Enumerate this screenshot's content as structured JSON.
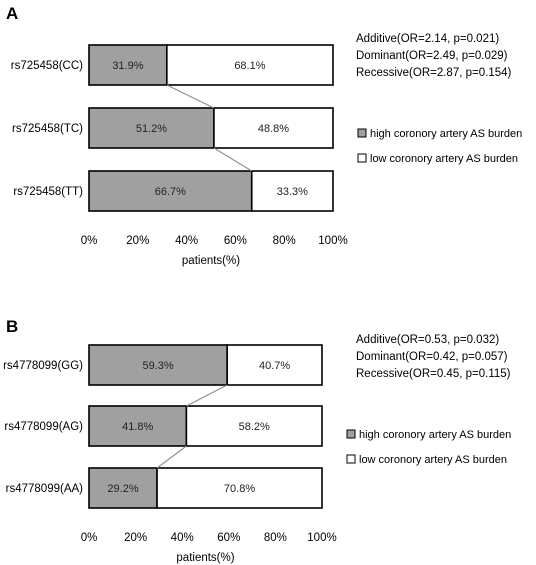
{
  "chart_data": [
    {
      "type": "bar",
      "orientation": "horizontal",
      "stacked": true,
      "panel": "A",
      "categories": [
        "rs725458(CC)",
        "rs725458(TC)",
        "rs725458(TT)"
      ],
      "series": [
        {
          "name": "high coronory artery AS burden",
          "color": "#a0a0a0",
          "values": [
            31.9,
            51.2,
            66.7
          ],
          "labels": [
            "31.9%",
            "51.2%",
            "66.7%"
          ]
        },
        {
          "name": "low coronory artery AS burden",
          "color": "#ffffff",
          "values": [
            68.1,
            48.8,
            33.3
          ],
          "labels": [
            "68.1%",
            "48.8%",
            "33.3%"
          ]
        }
      ],
      "xlabel": "patients(%)",
      "xlim": [
        0,
        100
      ],
      "xticks": [
        "0%",
        "20%",
        "40%",
        "60%",
        "80%",
        "100%"
      ],
      "annotations": [
        "Additive(OR=2.14, p=0.021)",
        "Dominant(OR=2.49, p=0.029)",
        "Recessive(OR=2.87, p=0.154)"
      ],
      "legend_position": "right"
    },
    {
      "type": "bar",
      "orientation": "horizontal",
      "stacked": true,
      "panel": "B",
      "categories": [
        "rs4778099(GG)",
        "rs4778099(AG)",
        "rs4778099(AA)"
      ],
      "series": [
        {
          "name": "high coronory artery AS burden",
          "color": "#a0a0a0",
          "values": [
            59.3,
            41.8,
            29.2
          ],
          "labels": [
            "59.3%",
            "41.8%",
            "29.2%"
          ]
        },
        {
          "name": "low coronory artery AS burden",
          "color": "#ffffff",
          "values": [
            40.7,
            58.2,
            70.8
          ],
          "labels": [
            "40.7%",
            "58.2%",
            "70.8%"
          ]
        }
      ],
      "xlabel": "patients(%)",
      "xlim": [
        0,
        100
      ],
      "xticks": [
        "0%",
        "20%",
        "40%",
        "60%",
        "80%",
        "100%"
      ],
      "annotations": [
        "Additive(OR=0.53, p=0.032)",
        "Dominant(OR=0.42, p=0.057)",
        "Recessive(OR=0.45, p=0.115)"
      ],
      "legend_position": "right"
    }
  ]
}
